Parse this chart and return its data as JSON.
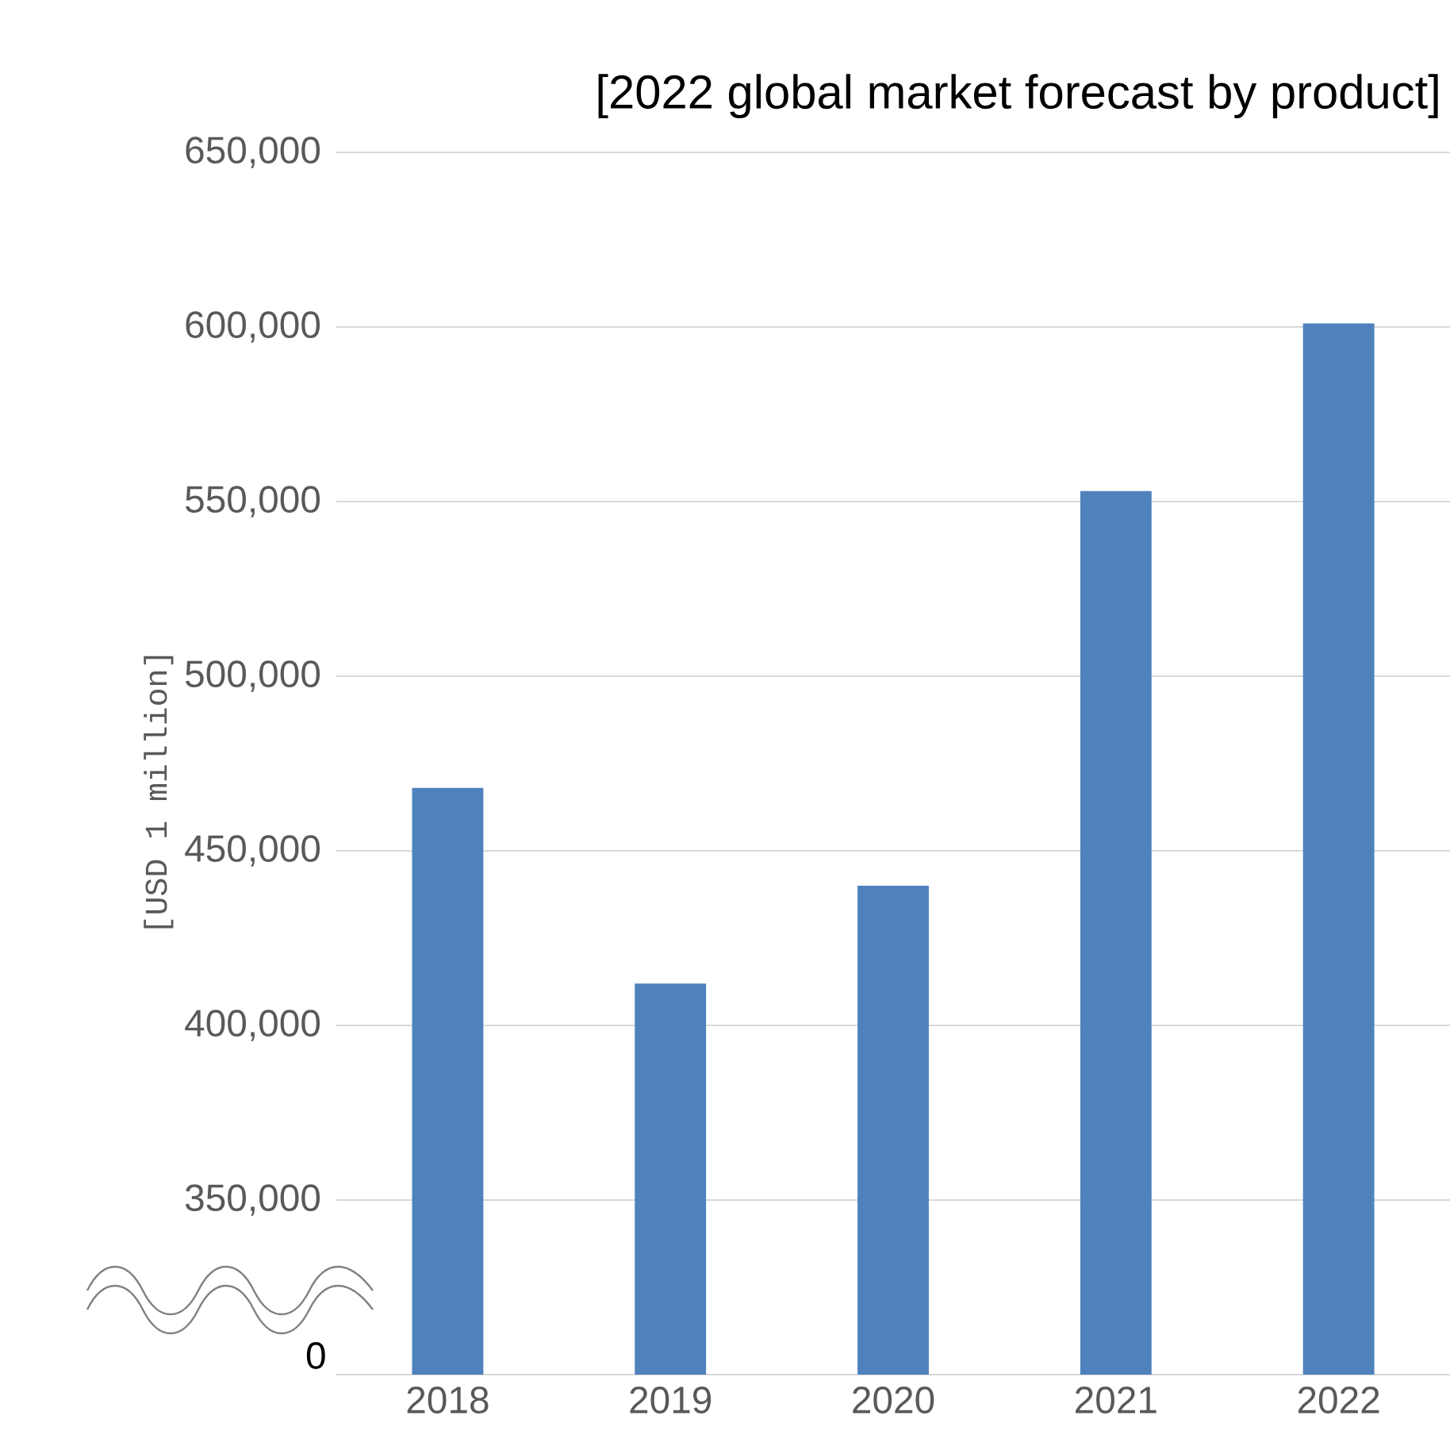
{
  "chart_data": {
    "type": "bar",
    "title": "[2022 global market forecast by product]",
    "ylabel": "[USD 1 million]",
    "categories": [
      "2018",
      "2019",
      "2020",
      "2021",
      "2022"
    ],
    "values": [
      468000,
      412000,
      440000,
      553000,
      601000
    ],
    "color": "#4f81bd",
    "ylim": [
      300000,
      650000
    ],
    "annotations": [
      "0"
    ],
    "yticks": [
      {
        "value": 350000,
        "label": "350,000"
      },
      {
        "value": 400000,
        "label": "400,000"
      },
      {
        "value": 450000,
        "label": "450,000"
      },
      {
        "value": 500000,
        "label": "500,000"
      },
      {
        "value": 550000,
        "label": "550,000"
      },
      {
        "value": 600000,
        "label": "600,000"
      },
      {
        "value": 650000,
        "label": "650,000"
      }
    ],
    "grid": "y"
  }
}
